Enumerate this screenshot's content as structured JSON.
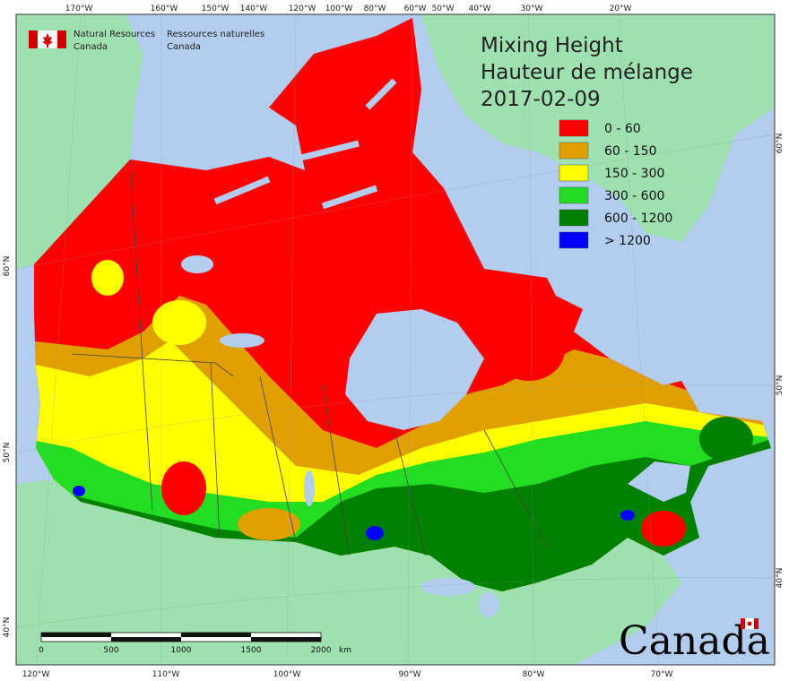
{
  "header": {
    "nrc_en_line1": "Natural Resources",
    "nrc_en_line2": "Canada",
    "nrc_fr_line1": "Ressources naturelles",
    "nrc_fr_line2": "Canada"
  },
  "title": {
    "line1": "Mixing Height",
    "line2": "Hauteur de mélange",
    "date": "2017-02-09"
  },
  "legend": [
    {
      "label": "0 - 60",
      "color": "#ff0000"
    },
    {
      "label": "60 - 150",
      "color": "#e0a000"
    },
    {
      "label": "150 - 300",
      "color": "#ffff00"
    },
    {
      "label": "300 - 600",
      "color": "#22dd22"
    },
    {
      "label": "600 - 1200",
      "color": "#008000"
    },
    {
      "label": "> 1200",
      "color": "#0000ff"
    }
  ],
  "top_ticks": [
    "170°W",
    "160°W",
    "150°W",
    "140°W",
    "120°W",
    "100°W",
    "80°W",
    "60°W",
    "50°W",
    "40°W",
    "30°W",
    "20°W"
  ],
  "bottom_ticks": [
    "120°W",
    "110°W",
    "100°W",
    "90°W",
    "80°W",
    "70°W"
  ],
  "left_ticks": [
    "60°N",
    "50°N",
    "40°N"
  ],
  "right_ticks": [
    "60°N",
    "50°N",
    "40°N"
  ],
  "scale_bar": {
    "labels": [
      "0",
      "500",
      "1000",
      "1500",
      "2000"
    ],
    "unit": "km"
  },
  "wordmark": "Canada",
  "colors": {
    "ocean": "#b3cdee",
    "foreign_land": "#9fe0b0",
    "border": "#444444"
  }
}
